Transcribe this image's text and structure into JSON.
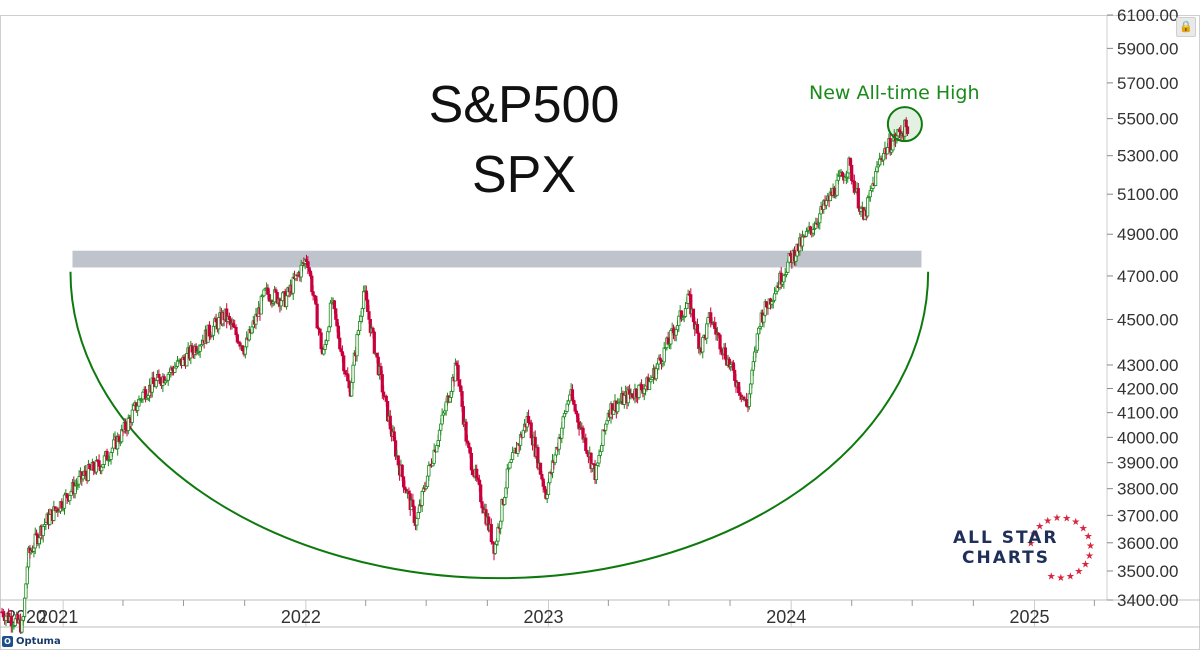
{
  "title": {
    "line1": "S&P500",
    "line2": "SPX"
  },
  "annotation": {
    "text": "New All-time High"
  },
  "brand": {
    "optuma": "Optuma",
    "allstar_line1": "ALL STAR",
    "allstar_line2": "CHARTS"
  },
  "colors": {
    "up": "#1a8a1a",
    "down": "#c8003c",
    "arc": "#0e7a0e",
    "resistance_band": "#b8bec7",
    "axis_text": "#333333",
    "grid": "#eeeeee",
    "brand_navy": "#1e2f5a",
    "brand_red": "#d7283f"
  },
  "icons": {
    "lock": "lock-icon",
    "optuma": "optuma-logo-icon",
    "allstar": "star-ring-icon"
  },
  "chart_data": {
    "type": "candlestick",
    "title": "S&P500 SPX",
    "y_scale": "log",
    "ylim": [
      3400,
      6100
    ],
    "y_ticks": [
      "6100.00",
      "5900.00",
      "5700.00",
      "5500.00",
      "5300.00",
      "5100.00",
      "4900.00",
      "4700.00",
      "4500.00",
      "4300.00",
      "4200.00",
      "4100.00",
      "4000.00",
      "3900.00",
      "3800.00",
      "3700.00",
      "3600.00",
      "3500.00",
      "3400.00"
    ],
    "x_range": [
      "2020-09-28",
      "2025-04-20"
    ],
    "x_labels": [
      {
        "label": "2020",
        "date": "2020-09-28"
      },
      {
        "label": "2021",
        "date": "2021-01-01"
      },
      {
        "label": "2022",
        "date": "2022-01-01"
      },
      {
        "label": "2023",
        "date": "2023-01-01"
      },
      {
        "label": "2024",
        "date": "2024-01-01"
      },
      {
        "label": "2025",
        "date": "2025-01-01"
      }
    ],
    "price_path": [
      [
        "2020-10-01",
        3360
      ],
      [
        "2020-11-01",
        3310
      ],
      [
        "2020-11-09",
        3550
      ],
      [
        "2020-12-01",
        3660
      ],
      [
        "2021-01-01",
        3756
      ],
      [
        "2021-02-01",
        3850
      ],
      [
        "2021-03-01",
        3900
      ],
      [
        "2021-04-01",
        4020
      ],
      [
        "2021-05-01",
        4180
      ],
      [
        "2021-06-01",
        4250
      ],
      [
        "2021-07-01",
        4320
      ],
      [
        "2021-08-01",
        4420
      ],
      [
        "2021-09-01",
        4520
      ],
      [
        "2021-10-01",
        4370
      ],
      [
        "2021-11-01",
        4620
      ],
      [
        "2021-12-01",
        4590
      ],
      [
        "2022-01-03",
        4790
      ],
      [
        "2022-01-27",
        4330
      ],
      [
        "2022-02-09",
        4580
      ],
      [
        "2022-03-08",
        4180
      ],
      [
        "2022-03-29",
        4630
      ],
      [
        "2022-05-01",
        4130
      ],
      [
        "2022-05-20",
        3900
      ],
      [
        "2022-06-16",
        3670
      ],
      [
        "2022-07-01",
        3830
      ],
      [
        "2022-08-16",
        4300
      ],
      [
        "2022-09-01",
        3960
      ],
      [
        "2022-10-12",
        3580
      ],
      [
        "2022-11-01",
        3860
      ],
      [
        "2022-12-01",
        4080
      ],
      [
        "2022-12-28",
        3780
      ],
      [
        "2023-02-02",
        4180
      ],
      [
        "2023-03-13",
        3850
      ],
      [
        "2023-04-01",
        4110
      ],
      [
        "2023-05-01",
        4170
      ],
      [
        "2023-06-01",
        4220
      ],
      [
        "2023-07-31",
        4590
      ],
      [
        "2023-08-18",
        4370
      ],
      [
        "2023-09-01",
        4510
      ],
      [
        "2023-10-27",
        4120
      ],
      [
        "2023-11-15",
        4500
      ],
      [
        "2023-12-29",
        4770
      ],
      [
        "2024-02-01",
        4930
      ],
      [
        "2024-03-28",
        5250
      ],
      [
        "2024-04-19",
        4970
      ],
      [
        "2024-05-15",
        5300
      ],
      [
        "2024-06-14",
        5430
      ],
      [
        "2024-06-24",
        5460
      ]
    ],
    "resistance_band": {
      "low": 4740,
      "high": 4820,
      "start": "2021-01-15",
      "end": "2024-07-15"
    },
    "cup_arc": {
      "left": "2021-01-12",
      "right": "2024-07-25",
      "rim": 4720,
      "bottom": 3475
    },
    "annotations": [
      {
        "text": "New All-time High",
        "date": "2024-06-20",
        "price": 5470
      }
    ]
  }
}
